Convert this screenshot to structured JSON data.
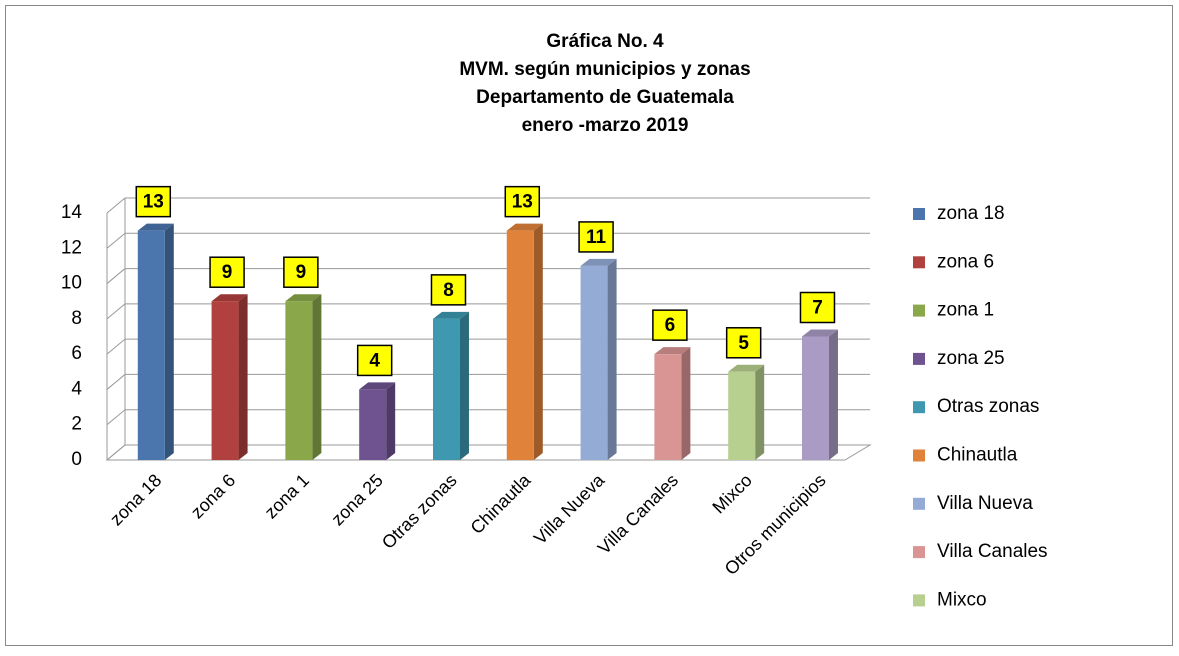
{
  "chart_data": {
    "type": "bar3d",
    "title": [
      "Gráfica No. 4",
      "MVM. según municipios y zonas",
      "Departamento  de Guatemala",
      "enero -marzo 2019"
    ],
    "categories": [
      "zona 18",
      "zona 6",
      "zona 1",
      "zona 25",
      "Otras zonas",
      "Chinautla",
      "Villa Nueva",
      "Villa Canales",
      "Mixco",
      "Otros municipios"
    ],
    "values": [
      13,
      9,
      9,
      4,
      8,
      13,
      11,
      6,
      5,
      7
    ],
    "colors": [
      "#4a76ad",
      "#b0413e",
      "#8aa84a",
      "#6f5391",
      "#3d98b0",
      "#e0823a",
      "#94abd6",
      "#d99494",
      "#b7cf8f",
      "#a99bc3"
    ],
    "ylim": [
      0,
      14
    ],
    "yticks": [
      0,
      2,
      4,
      6,
      8,
      10,
      12,
      14
    ],
    "grid": true,
    "legend": "right"
  }
}
